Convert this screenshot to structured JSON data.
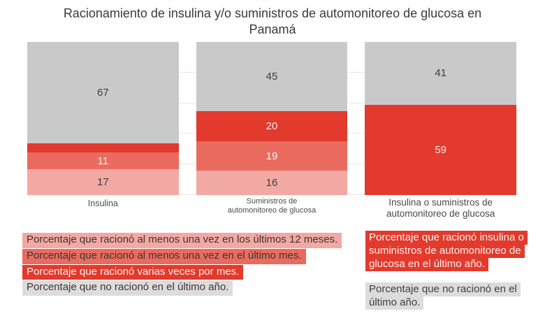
{
  "title": "Racionamiento de insulina y/o suministros de automonitoreo de glucosa en Panamá",
  "palette": {
    "gray": "#c9c9c9",
    "light_red": "#f2a9a3",
    "mid_red": "#e96b5f",
    "bright_red": "#e23a2c",
    "legend_gray": "#dcdcdc",
    "gridline": "#f0e6e3"
  },
  "chart_data": {
    "type": "bar",
    "subtype": "stacked-vertical",
    "value_unit": "percent",
    "ylim": [
      0,
      100
    ],
    "gridlines_percent": [
      0,
      20,
      40,
      60,
      80
    ],
    "categories": [
      "Insulina",
      "Suministros de\nautomonitoreo de glucosa",
      "Insulina o suministros de\nautomonitoreo de glucosa"
    ],
    "bars": [
      {
        "category": "Insulina",
        "segments": [
          {
            "value": 17,
            "label": "17",
            "color": "light_red",
            "label_style": "dark",
            "series": "Porcentaje que racionó al menos una vez en los últimos 12 meses."
          },
          {
            "value": 11,
            "label": "11",
            "color": "mid_red",
            "label_style": "light",
            "series": "Porcentaje que racionó al menos una vez en el último mes."
          },
          {
            "value": 6,
            "label": "6",
            "color": "bright_red",
            "label_style": "dark",
            "label_position": "above",
            "series": "Porcentaje que racionó varias veces por mes."
          },
          {
            "value": 67,
            "label": "67",
            "color": "gray",
            "label_style": "dark",
            "series": "Porcentaje que no racionó en el último año."
          }
        ]
      },
      {
        "category": "Suministros de\nautomonitoreo de glucosa",
        "segments": [
          {
            "value": 16,
            "label": "16",
            "color": "light_red",
            "label_style": "dark",
            "series": "Porcentaje que racionó al menos una vez en los últimos 12 meses."
          },
          {
            "value": 19,
            "label": "19",
            "color": "mid_red",
            "label_style": "light",
            "series": "Porcentaje que racionó al menos una vez en el último mes."
          },
          {
            "value": 20,
            "label": "20",
            "color": "bright_red",
            "label_style": "light",
            "series": "Porcentaje que racionó varias veces por mes."
          },
          {
            "value": 45,
            "label": "45",
            "color": "gray",
            "label_style": "dark",
            "series": "Porcentaje que no racionó en el último año."
          }
        ]
      },
      {
        "category": "Insulina o suministros de\nautomonitoreo de glucosa",
        "segments": [
          {
            "value": 59,
            "label": "59",
            "color": "bright_red",
            "label_style": "light",
            "series": "Porcentaje que racionó insulina o suministros de automonitoreo de glucosa en el último año."
          },
          {
            "value": 41,
            "label": "41",
            "color": "gray",
            "label_style": "dark",
            "series": "Porcentaje que no racionó en el último año."
          }
        ]
      }
    ]
  },
  "legend_left": {
    "items": [
      {
        "text": "Porcentaje que racionó al menos una vez en los últimos 12 meses.",
        "color": "light_red",
        "text_style": "dark"
      },
      {
        "text": "Porcentaje que racionó al menos una vez en el último mes.",
        "color": "mid_red",
        "text_style": "dark"
      },
      {
        "text": "Porcentaje que racionó varias veces por mes.",
        "color": "bright_red",
        "text_style": "light"
      },
      {
        "text": "Porcentaje que no racionó en el último año.",
        "color": "legend_gray",
        "text_style": "dark"
      }
    ]
  },
  "legend_right": {
    "items": [
      {
        "text": "Porcentaje que racionó insulina o suministros de automonitoreo de glucosa en el último año.",
        "color": "bright_red",
        "text_style": "light"
      },
      {
        "text": "Porcentaje que no racionó en el último año.",
        "color": "legend_gray",
        "text_style": "dark"
      }
    ]
  }
}
